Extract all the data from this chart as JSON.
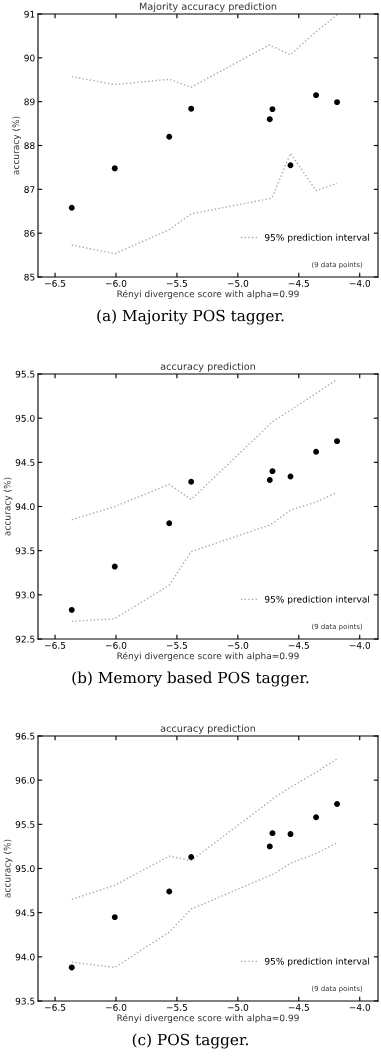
{
  "chart_data": [
    {
      "type": "scatter",
      "title": "Majority accuracy prediction",
      "xlabel": "Rényi divergence score with alpha=0.99",
      "ylabel": "accuracy (%)",
      "xlim": [
        -6.64,
        -3.85
      ],
      "ylim": [
        85,
        91
      ],
      "xticks": [
        {
          "value": -6.5,
          "label": "−6.5"
        },
        {
          "value": -6.0,
          "label": "−6.0"
        },
        {
          "value": -5.5,
          "label": "−5.5"
        },
        {
          "value": -5.0,
          "label": "−5.0"
        },
        {
          "value": -4.5,
          "label": "−4.5"
        },
        {
          "value": -4.0,
          "label": "−4.0"
        }
      ],
      "yticks": [
        85,
        86,
        87,
        88,
        89,
        90,
        91
      ],
      "grid": false,
      "legend": "bottom right",
      "marker": "circle",
      "x": [
        -6.363,
        -6.01,
        -5.563,
        -5.383,
        -4.738,
        -4.716,
        -4.568,
        -4.358,
        -4.186
      ],
      "series": [
        {
          "color": "#000000",
          "values": [
            86.58,
            87.48,
            88.2,
            88.84,
            88.6,
            88.83,
            87.55,
            89.15,
            88.99
          ]
        },
        {
          "type": "line",
          "name": "95% prediction interval",
          "color": "#aaaaaa",
          "line_style": "dotted",
          "marker": "none",
          "values": [
            89.57,
            89.39,
            89.51,
            89.33,
            90.3,
            90.26,
            90.07,
            90.6,
            90.98
          ]
        },
        {
          "type": "line",
          "color": "#aaaaaa",
          "line_style": "dotted",
          "marker": "none",
          "values": [
            85.73,
            85.53,
            86.08,
            86.44,
            86.79,
            86.83,
            87.82,
            86.97,
            87.14
          ]
        }
      ],
      "annotations": [
        "(9 data points)",
        "(a) Majority POS tagger."
      ]
    },
    {
      "type": "scatter",
      "title": "accuracy prediction",
      "xlabel": "Rényi divergence score with alpha=0.99",
      "ylabel": "accuracy (%)",
      "xlim": [
        -6.64,
        -3.85
      ],
      "ylim": [
        92.5,
        95.5
      ],
      "xticks": [
        {
          "value": -6.5,
          "label": "−6.5"
        },
        {
          "value": -6.0,
          "label": "−6.0"
        },
        {
          "value": -5.5,
          "label": "−5.5"
        },
        {
          "value": -5.0,
          "label": "−5.0"
        },
        {
          "value": -4.5,
          "label": "−4.5"
        },
        {
          "value": -4.0,
          "label": "−4.0"
        }
      ],
      "yticks": [
        92.5,
        {
          "value": 93.0,
          "label": "93.0"
        },
        93.5,
        {
          "value": 94.0,
          "label": "94.0"
        },
        94.5,
        {
          "value": 95.0,
          "label": "95.0"
        },
        95.5
      ],
      "grid": false,
      "legend": "bottom right",
      "marker": "circle",
      "x": [
        -6.363,
        -6.01,
        -5.563,
        -5.383,
        -4.738,
        -4.716,
        -4.568,
        -4.358,
        -4.186
      ],
      "series": [
        {
          "color": "#000000",
          "values": [
            92.83,
            93.32,
            93.81,
            94.28,
            94.3,
            94.4,
            94.34,
            94.62,
            94.74
          ]
        },
        {
          "type": "line",
          "name": "95% prediction interval",
          "color": "#aaaaaa",
          "line_style": "dotted",
          "marker": "none",
          "values": [
            93.85,
            94.0,
            94.25,
            94.08,
            94.93,
            94.96,
            95.09,
            95.28,
            95.44
          ]
        },
        {
          "type": "line",
          "color": "#aaaaaa",
          "line_style": "dotted",
          "marker": "none",
          "values": [
            92.7,
            92.73,
            93.11,
            93.49,
            93.79,
            93.81,
            93.96,
            94.05,
            94.16
          ]
        }
      ],
      "annotations": [
        "(9 data points)",
        "(b) Memory based POS tagger."
      ]
    },
    {
      "type": "scatter",
      "title": "accuracy prediction",
      "xlabel": "Rényi divergence score with alpha=0.99",
      "ylabel": "accuracy (%)",
      "xlim": [
        -6.64,
        -3.85
      ],
      "ylim": [
        93.5,
        96.5
      ],
      "xticks": [
        {
          "value": -6.5,
          "label": "−6.5"
        },
        {
          "value": -6.0,
          "label": "−6.0"
        },
        {
          "value": -5.5,
          "label": "−5.5"
        },
        {
          "value": -5.0,
          "label": "−5.0"
        },
        {
          "value": -4.5,
          "label": "−4.5"
        },
        {
          "value": -4.0,
          "label": "−4.0"
        }
      ],
      "yticks": [
        93.5,
        {
          "value": 94.0,
          "label": "94.0"
        },
        94.5,
        {
          "value": 95.0,
          "label": "95.0"
        },
        95.5,
        {
          "value": 96.0,
          "label": "96.0"
        },
        96.5
      ],
      "grid": false,
      "legend": "bottom right",
      "marker": "circle",
      "x": [
        -6.363,
        -6.01,
        -5.563,
        -5.383,
        -4.738,
        -4.716,
        -4.568,
        -4.358,
        -4.186
      ],
      "series": [
        {
          "color": "#000000",
          "values": [
            93.88,
            94.45,
            94.74,
            95.13,
            95.25,
            95.4,
            95.39,
            95.58,
            95.73
          ]
        },
        {
          "type": "line",
          "name": "95% prediction interval",
          "color": "#aaaaaa",
          "line_style": "dotted",
          "marker": "none",
          "values": [
            94.65,
            94.81,
            95.14,
            95.09,
            95.76,
            95.79,
            95.92,
            96.09,
            96.24
          ]
        },
        {
          "type": "line",
          "color": "#aaaaaa",
          "line_style": "dotted",
          "marker": "none",
          "values": [
            93.94,
            93.88,
            94.28,
            94.54,
            94.92,
            94.93,
            95.06,
            95.17,
            95.29
          ]
        }
      ],
      "annotations": [
        "(9 data points)",
        "(c) POS tagger."
      ]
    }
  ]
}
